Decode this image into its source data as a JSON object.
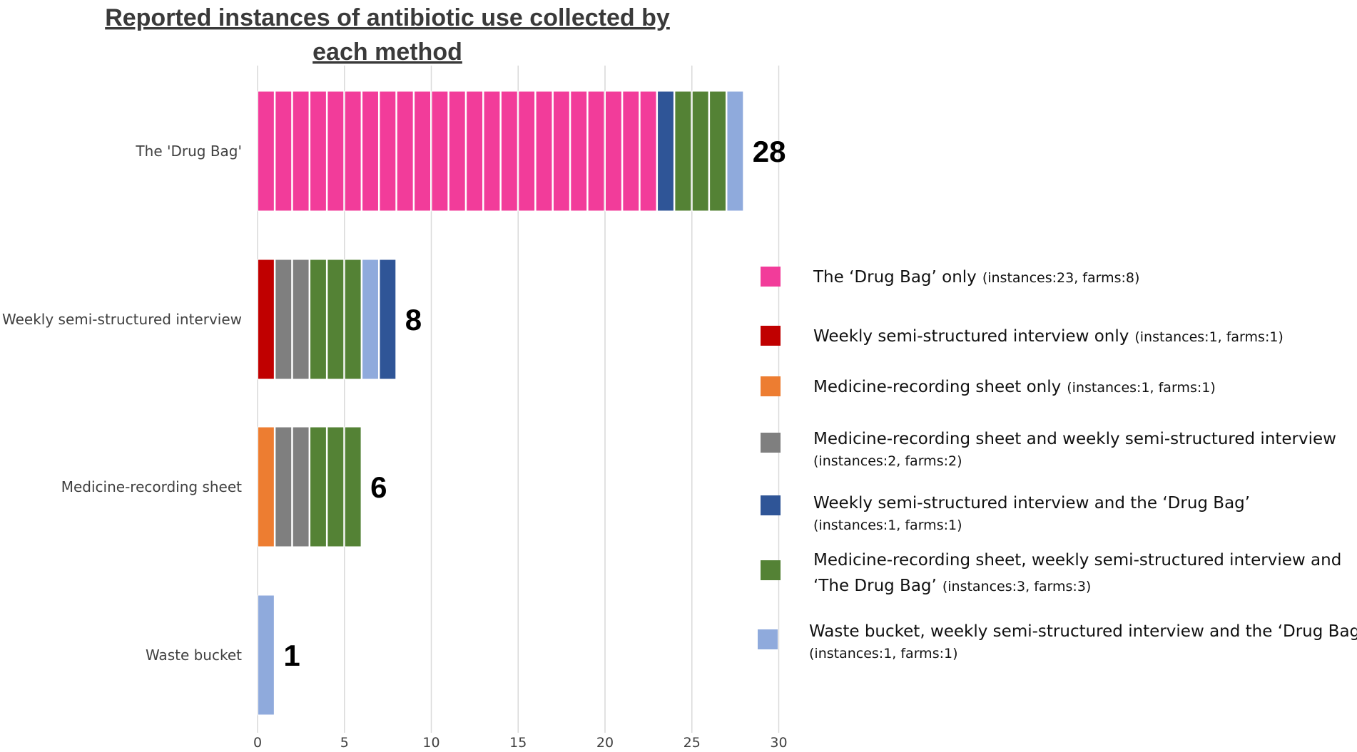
{
  "chart_data": {
    "type": "bar",
    "orientation": "horizontal",
    "stacked": true,
    "title_lines": [
      "Reported instances of antibiotic use collected by",
      "each method"
    ],
    "categories": [
      "The 'Drug Bag'",
      "Weekly semi-structured interview",
      "Medicine-recording sheet",
      "Waste bucket"
    ],
    "totals": [
      28,
      8,
      6,
      1
    ],
    "xlim": [
      0,
      30
    ],
    "xticks": [
      0,
      5,
      10,
      15,
      20,
      25,
      30
    ],
    "xtick_labels": [
      "0",
      "5",
      "10",
      "15",
      "20",
      "25",
      "30"
    ],
    "grid": true,
    "legend_position": "right",
    "series": [
      {
        "name": "The ‘Drug Bag’ only",
        "detail": "(instances:23, farms:8)",
        "color": "#f23c9a",
        "values": [
          23,
          0,
          0,
          0
        ]
      },
      {
        "name": "Weekly semi-structured interview only",
        "detail": "(instances:1, farms:1)",
        "color": "#c00000",
        "values": [
          0,
          1,
          0,
          0
        ]
      },
      {
        "name": "Medicine-recording sheet only",
        "detail": "(instances:1, farms:1)",
        "color": "#ed7d31",
        "values": [
          0,
          0,
          1,
          0
        ]
      },
      {
        "name": "Medicine-recording sheet and weekly semi-structured interview",
        "detail": "(instances:2, farms:2)",
        "color": "#7f7f7f",
        "values": [
          0,
          2,
          2,
          0
        ]
      },
      {
        "name": "Weekly semi-structured interview and the ‘Drug Bag’",
        "detail": "(instances:1, farms:1)",
        "color": "#2f5597",
        "values": [
          1,
          1,
          0,
          0
        ]
      },
      {
        "name": "Medicine-recording sheet, weekly semi-structured interview and",
        "name_line2": "‘The Drug Bag’",
        "detail": "(instances:3, farms:3)",
        "color": "#548235",
        "values": [
          3,
          3,
          3,
          0
        ]
      },
      {
        "name": "Waste bucket, weekly semi-structured interview and the ‘Drug Bag’",
        "detail": "(instances:1, farms:1)",
        "color": "#8faadc",
        "values": [
          1,
          1,
          0,
          1
        ]
      }
    ],
    "segment_order": [
      [
        0,
        4,
        5,
        6
      ],
      [
        1,
        3,
        5,
        6,
        4
      ],
      [
        2,
        3,
        5
      ],
      [
        6
      ]
    ]
  }
}
